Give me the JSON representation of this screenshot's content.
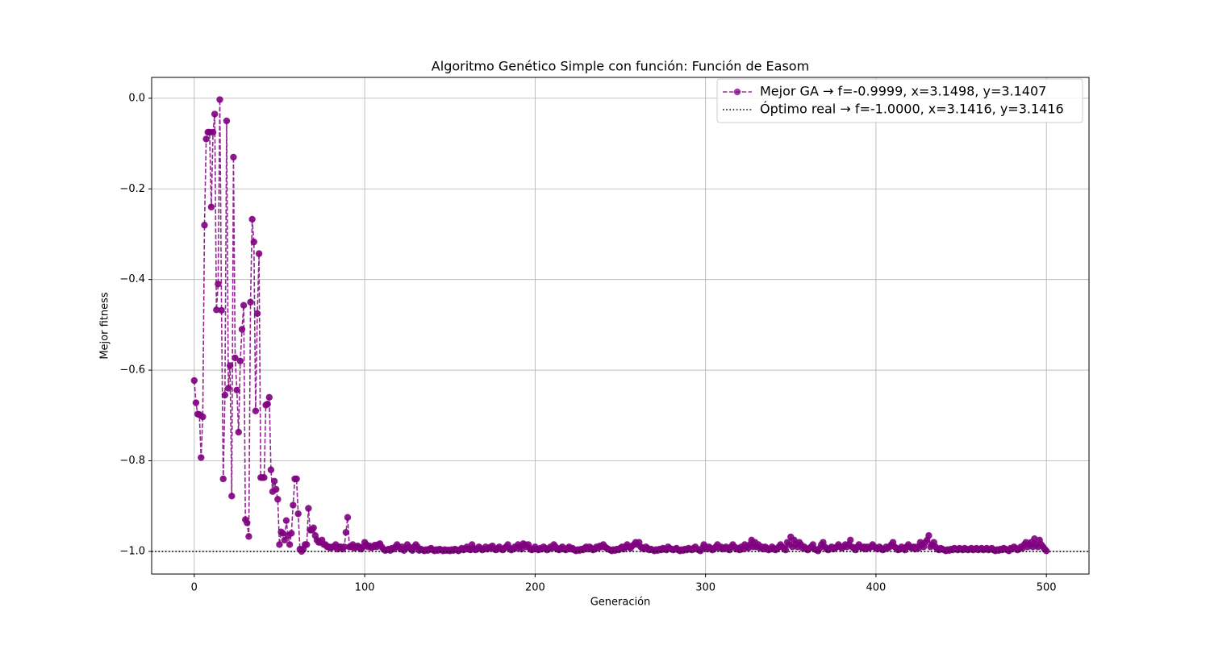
{
  "chart_data": {
    "type": "line",
    "title": "Algoritmo Genético Simple con función: Función de Easom",
    "x_label": "Generación",
    "y_label": "Mejor fitness",
    "xlim": [
      -25,
      525
    ],
    "ylim": [
      -1.05,
      0.046
    ],
    "xticks": [
      0,
      100,
      200,
      300,
      400,
      500
    ],
    "yticks": [
      {
        "value": 0.0,
        "label": "0.0"
      },
      {
        "value": -0.2,
        "label": "−0.2"
      },
      {
        "value": -0.4,
        "label": "−0.4"
      },
      {
        "value": -0.6,
        "label": "−0.6"
      },
      {
        "value": -0.8,
        "label": "−0.8"
      },
      {
        "value": -1.0,
        "label": "−1.0"
      }
    ],
    "grid": true,
    "legend": "upper right",
    "x": [
      0,
      1,
      2,
      3,
      4,
      5,
      6,
      7,
      8,
      9,
      10,
      11,
      12,
      13,
      14,
      15,
      16,
      17,
      18,
      19,
      20,
      21,
      22,
      23,
      24,
      25,
      26,
      27,
      28,
      29,
      30,
      31,
      32,
      33,
      34,
      35,
      36,
      37,
      38,
      39,
      40,
      41,
      42,
      43,
      44,
      45,
      46,
      47,
      48,
      49,
      50,
      51,
      52,
      53,
      54,
      55,
      56,
      57,
      58,
      59,
      60,
      61,
      62,
      63,
      64,
      65,
      66,
      67,
      68,
      69,
      70,
      71,
      72,
      73,
      74,
      75,
      76,
      77,
      78,
      79,
      80,
      81,
      82,
      83,
      84,
      85,
      86,
      87,
      88,
      89,
      90,
      91,
      92,
      93,
      94,
      95,
      96,
      97,
      98,
      99,
      100,
      101,
      102,
      103,
      104,
      105,
      106,
      107,
      108,
      109,
      110,
      111,
      112,
      113,
      114,
      115,
      116,
      117,
      118,
      119,
      120,
      121,
      122,
      123,
      124,
      125,
      126,
      127,
      128,
      129,
      130,
      131,
      132,
      133,
      134,
      135,
      136,
      137,
      138,
      139,
      140,
      141,
      142,
      143,
      144,
      145,
      146,
      147,
      148,
      149,
      150,
      151,
      152,
      153,
      154,
      155,
      156,
      157,
      158,
      159,
      160,
      161,
      162,
      163,
      164,
      165,
      166,
      167,
      168,
      169,
      170,
      171,
      172,
      173,
      174,
      175,
      176,
      177,
      178,
      179,
      180,
      181,
      182,
      183,
      184,
      185,
      186,
      187,
      188,
      189,
      190,
      191,
      192,
      193,
      194,
      195,
      196,
      197,
      198,
      199,
      200,
      201,
      202,
      203,
      204,
      205,
      206,
      207,
      208,
      209,
      210,
      211,
      212,
      213,
      214,
      215,
      216,
      217,
      218,
      219,
      220,
      221,
      222,
      223,
      224,
      225,
      226,
      227,
      228,
      229,
      230,
      231,
      232,
      233,
      234,
      235,
      236,
      237,
      238,
      239,
      240,
      241,
      242,
      243,
      244,
      245,
      246,
      247,
      248,
      249,
      250,
      251,
      252,
      253,
      254,
      255,
      256,
      257,
      258,
      259,
      260,
      261,
      262,
      263,
      264,
      265,
      266,
      267,
      268,
      269,
      270,
      271,
      272,
      273,
      274,
      275,
      276,
      277,
      278,
      279,
      280,
      281,
      282,
      283,
      284,
      285,
      286,
      287,
      288,
      289,
      290,
      291,
      292,
      293,
      294,
      295,
      296,
      297,
      298,
      299,
      300,
      301,
      302,
      303,
      304,
      305,
      306,
      307,
      308,
      309,
      310,
      311,
      312,
      313,
      314,
      315,
      316,
      317,
      318,
      319,
      320,
      321,
      322,
      323,
      324,
      325,
      326,
      327,
      328,
      329,
      330,
      331,
      332,
      333,
      334,
      335,
      336,
      337,
      338,
      339,
      340,
      341,
      342,
      343,
      344,
      345,
      346,
      347,
      348,
      349,
      350,
      351,
      352,
      353,
      354,
      355,
      356,
      357,
      358,
      359,
      360,
      361,
      362,
      363,
      364,
      365,
      366,
      367,
      368,
      369,
      370,
      371,
      372,
      373,
      374,
      375,
      376,
      377,
      378,
      379,
      380,
      381,
      382,
      383,
      384,
      385,
      386,
      387,
      388,
      389,
      390,
      391,
      392,
      393,
      394,
      395,
      396,
      397,
      398,
      399,
      400,
      401,
      402,
      403,
      404,
      405,
      406,
      407,
      408,
      409,
      410,
      411,
      412,
      413,
      414,
      415,
      416,
      417,
      418,
      419,
      420,
      421,
      422,
      423,
      424,
      425,
      426,
      427,
      428,
      429,
      430,
      431,
      432,
      433,
      434,
      435,
      436,
      437,
      438,
      439,
      440,
      441,
      442,
      443,
      444,
      445,
      446,
      447,
      448,
      449,
      450,
      451,
      452,
      453,
      454,
      455,
      456,
      457,
      458,
      459,
      460,
      461,
      462,
      463,
      464,
      465,
      466,
      467,
      468,
      469,
      470,
      471,
      472,
      473,
      474,
      475,
      476,
      477,
      478,
      479,
      480,
      481,
      482,
      483,
      484,
      485,
      486,
      487,
      488,
      489,
      490,
      491,
      492,
      493,
      494,
      495,
      496,
      497,
      498,
      499,
      500
    ],
    "series": [
      {
        "name": "Mejor GA → f=-0.9999, x=3.1498, y=3.1407",
        "color": "#800080",
        "values": [
          -0.623,
          -0.672,
          -0.697,
          -0.698,
          -0.793,
          -0.703,
          -0.28,
          -0.09,
          -0.075,
          -0.075,
          -0.24,
          -0.075,
          -0.035,
          -0.467,
          -0.41,
          -0.003,
          -0.468,
          -0.84,
          -0.655,
          -0.05,
          -0.64,
          -0.59,
          -0.878,
          -0.13,
          -0.573,
          -0.644,
          -0.737,
          -0.58,
          -0.51,
          -0.457,
          -0.93,
          -0.937,
          -0.967,
          -0.45,
          -0.267,
          -0.317,
          -0.69,
          -0.475,
          -0.343,
          -0.837,
          -0.837,
          -0.837,
          -0.677,
          -0.675,
          -0.66,
          -0.82,
          -0.868,
          -0.845,
          -0.863,
          -0.885,
          -0.985,
          -0.957,
          -0.96,
          -0.975,
          -0.932,
          -0.965,
          -0.985,
          -0.96,
          -0.898,
          -0.84,
          -0.84,
          -0.917,
          -0.995,
          -1.0,
          -0.995,
          -0.985,
          -0.985,
          -0.905,
          -0.953,
          -0.953,
          -0.948,
          -0.965,
          -0.975,
          -0.98,
          -0.98,
          -0.975,
          -0.985,
          -0.985,
          -0.99,
          -0.99,
          -0.993,
          -0.99,
          -0.99,
          -0.985,
          -0.995,
          -0.99,
          -0.99,
          -0.995,
          -0.99,
          -0.958,
          -0.925,
          -0.99,
          -0.99,
          -0.985,
          -0.993,
          -0.99,
          -0.988,
          -0.992,
          -0.995,
          -0.99,
          -0.98,
          -0.985,
          -0.99,
          -0.988,
          -0.992,
          -0.99,
          -0.986,
          -0.99,
          -0.985,
          -0.983,
          -0.99,
          -0.995,
          -0.998,
          -0.997,
          -0.995,
          -0.998,
          -0.993,
          -0.995,
          -0.99,
          -0.985,
          -0.99,
          -0.995,
          -0.99,
          -0.998,
          -0.993,
          -0.985,
          -0.99,
          -0.995,
          -0.998,
          -0.99,
          -0.985,
          -0.99,
          -0.998,
          -0.995,
          -0.997,
          -0.999,
          -0.996,
          -0.998,
          -0.995,
          -0.993,
          -0.997,
          -0.999,
          -0.996,
          -0.998,
          -0.995,
          -0.997,
          -0.999,
          -0.996,
          -0.998,
          -0.997,
          -0.999,
          -0.996,
          -0.998,
          -0.995,
          -0.997,
          -0.999,
          -0.996,
          -0.993,
          -0.997,
          -0.995,
          -0.99,
          -0.995,
          -0.997,
          -0.985,
          -0.993,
          -0.997,
          -0.995,
          -0.99,
          -0.993,
          -0.997,
          -0.995,
          -0.99,
          -0.995,
          -0.993,
          -0.99,
          -0.988,
          -0.995,
          -0.997,
          -0.993,
          -0.99,
          -0.995,
          -0.997,
          -0.993,
          -0.99,
          -0.985,
          -0.993,
          -0.997,
          -0.995,
          -0.99,
          -0.993,
          -0.985,
          -0.99,
          -0.995,
          -0.983,
          -0.985,
          -0.99,
          -0.985,
          -0.993,
          -0.997,
          -0.995,
          -0.99,
          -0.995,
          -0.997,
          -0.993,
          -0.995,
          -0.99,
          -0.993,
          -0.997,
          -0.995,
          -0.99,
          -0.993,
          -0.985,
          -0.99,
          -0.995,
          -0.997,
          -0.993,
          -0.99,
          -0.995,
          -0.997,
          -0.993,
          -0.99,
          -0.995,
          -0.993,
          -0.997,
          -0.999,
          -0.996,
          -0.998,
          -0.995,
          -0.997,
          -0.993,
          -0.99,
          -0.995,
          -0.99,
          -0.993,
          -0.997,
          -0.995,
          -0.99,
          -0.993,
          -0.988,
          -0.99,
          -0.985,
          -0.99,
          -0.993,
          -0.995,
          -0.997,
          -0.999,
          -0.996,
          -0.998,
          -0.995,
          -0.997,
          -0.993,
          -0.99,
          -0.995,
          -0.99,
          -0.985,
          -0.99,
          -0.993,
          -0.988,
          -0.985,
          -0.98,
          -0.985,
          -0.98,
          -0.99,
          -0.993,
          -0.995,
          -0.99,
          -0.993,
          -0.997,
          -0.995,
          -0.997,
          -0.999,
          -0.996,
          -0.998,
          -0.995,
          -0.997,
          -0.993,
          -0.995,
          -0.997,
          -0.99,
          -0.993,
          -0.995,
          -0.997,
          -0.995,
          -0.993,
          -0.997,
          -0.999,
          -0.996,
          -0.998,
          -0.995,
          -0.997,
          -0.993,
          -0.995,
          -0.997,
          -0.993,
          -0.99,
          -0.995,
          -0.997,
          -0.999,
          -0.993,
          -0.985,
          -0.99,
          -0.995,
          -0.99,
          -0.993,
          -0.997,
          -0.995,
          -0.99,
          -0.985,
          -0.993,
          -0.99,
          -0.995,
          -0.993,
          -0.99,
          -0.995,
          -0.997,
          -0.99,
          -0.985,
          -0.99,
          -0.995,
          -0.993,
          -0.997,
          -0.99,
          -0.995,
          -0.985,
          -0.99,
          -0.993,
          -0.985,
          -0.975,
          -0.99,
          -0.98,
          -0.99,
          -0.985,
          -0.993,
          -0.99,
          -0.995,
          -0.99,
          -0.993,
          -0.997,
          -0.995,
          -0.99,
          -0.993,
          -0.997,
          -0.995,
          -0.99,
          -0.985,
          -0.99,
          -0.993,
          -0.997,
          -0.98,
          -0.985,
          -0.968,
          -0.99,
          -0.975,
          -0.985,
          -0.99,
          -0.98,
          -0.985,
          -0.993,
          -0.99,
          -0.995,
          -0.997,
          -0.993,
          -0.99,
          -0.985,
          -0.995,
          -0.997,
          -0.999,
          -0.993,
          -0.985,
          -0.98,
          -0.99,
          -0.995,
          -0.997,
          -0.993,
          -0.99,
          -0.995,
          -0.993,
          -0.99,
          -0.985,
          -0.99,
          -0.993,
          -0.99,
          -0.985,
          -0.99,
          -0.985,
          -0.975,
          -0.99,
          -0.993,
          -0.997,
          -0.99,
          -0.985,
          -0.99,
          -0.993,
          -0.99,
          -0.995,
          -0.99,
          -0.993,
          -0.99,
          -0.985,
          -0.99,
          -0.993,
          -0.995,
          -0.99,
          -0.993,
          -0.997,
          -0.995,
          -0.99,
          -0.993,
          -0.99,
          -0.985,
          -0.98,
          -0.99,
          -0.993,
          -0.997,
          -0.995,
          -0.99,
          -0.993,
          -0.997,
          -0.99,
          -0.985,
          -0.99,
          -0.993,
          -0.99,
          -0.995,
          -0.99,
          -0.993,
          -0.98,
          -0.985,
          -0.99,
          -0.98,
          -0.975,
          -0.965,
          -0.99,
          -0.985,
          -0.98,
          -0.99,
          -0.995,
          -0.997,
          -0.993,
          -0.995,
          -0.997,
          -0.999,
          -0.996,
          -0.998,
          -0.995,
          -0.997,
          -0.993,
          -0.995,
          -0.997,
          -0.993,
          -0.995,
          -0.997,
          -0.993,
          -0.995,
          -0.997,
          -0.995,
          -0.993,
          -0.997,
          -0.995,
          -0.993,
          -0.997,
          -0.995,
          -0.993,
          -0.997,
          -0.995,
          -0.993,
          -0.997,
          -0.995,
          -0.993,
          -0.997,
          -0.999,
          -0.996,
          -0.998,
          -0.995,
          -0.997,
          -0.993,
          -0.995,
          -0.997,
          -0.999,
          -0.993,
          -0.995,
          -0.99,
          -0.993,
          -0.997,
          -0.995,
          -0.99,
          -0.993,
          -0.985,
          -0.98,
          -0.99,
          -0.985,
          -0.98,
          -0.99,
          -0.972,
          -0.985,
          -0.99,
          -0.975,
          -0.985,
          -0.99,
          -0.995,
          -0.999
        ]
      }
    ],
    "hlines": [
      {
        "name": "Óptimo real → f=-1.0000, x=3.1416, y=3.1416",
        "color": "#000000",
        "y": -1.0
      }
    ]
  }
}
